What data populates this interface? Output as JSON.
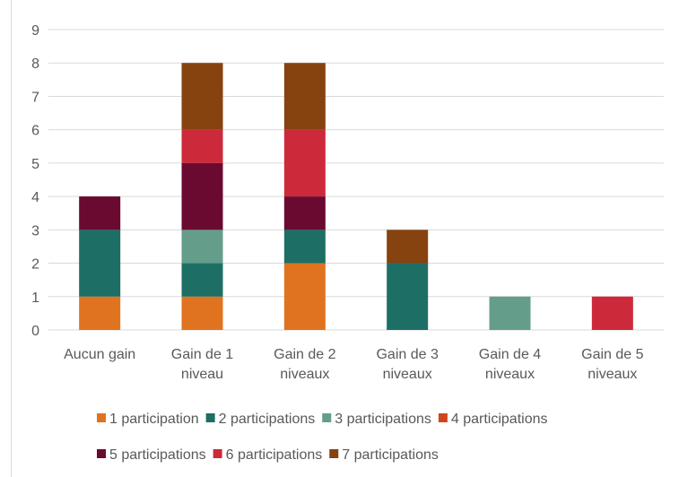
{
  "chart_data": {
    "type": "bar",
    "stacked": true,
    "categories": [
      [
        "Aucun gain"
      ],
      [
        "Gain de 1",
        "niveau"
      ],
      [
        "Gain de 2",
        "niveaux"
      ],
      [
        "Gain de 3",
        "niveaux"
      ],
      [
        "Gain de 4",
        "niveaux"
      ],
      [
        "Gain de 5",
        "niveaux"
      ]
    ],
    "series": [
      {
        "name": "1 participation",
        "color": "#E07320",
        "values": [
          1,
          1,
          2,
          0,
          0,
          0
        ]
      },
      {
        "name": "2 participations",
        "color": "#1D6F65",
        "values": [
          2,
          1,
          1,
          2,
          0,
          0
        ]
      },
      {
        "name": "3 participations",
        "color": "#649E8A",
        "values": [
          0,
          1,
          0,
          0,
          1,
          0
        ]
      },
      {
        "name": "4 participations",
        "color": "#D0461E",
        "values": [
          0,
          0,
          0,
          0,
          0,
          0
        ]
      },
      {
        "name": "5 participations",
        "color": "#6A0A30",
        "values": [
          1,
          2,
          1,
          0,
          0,
          0
        ]
      },
      {
        "name": "6 participations",
        "color": "#CC2A3A",
        "values": [
          0,
          1,
          2,
          0,
          0,
          1
        ]
      },
      {
        "name": "7 participations",
        "color": "#86420F",
        "values": [
          0,
          2,
          2,
          1,
          0,
          0
        ]
      }
    ],
    "ylim": [
      0,
      9
    ],
    "yticks": [
      0,
      1,
      2,
      3,
      4,
      5,
      6,
      7,
      8,
      9
    ],
    "grid": true,
    "legend_position": "bottom"
  }
}
